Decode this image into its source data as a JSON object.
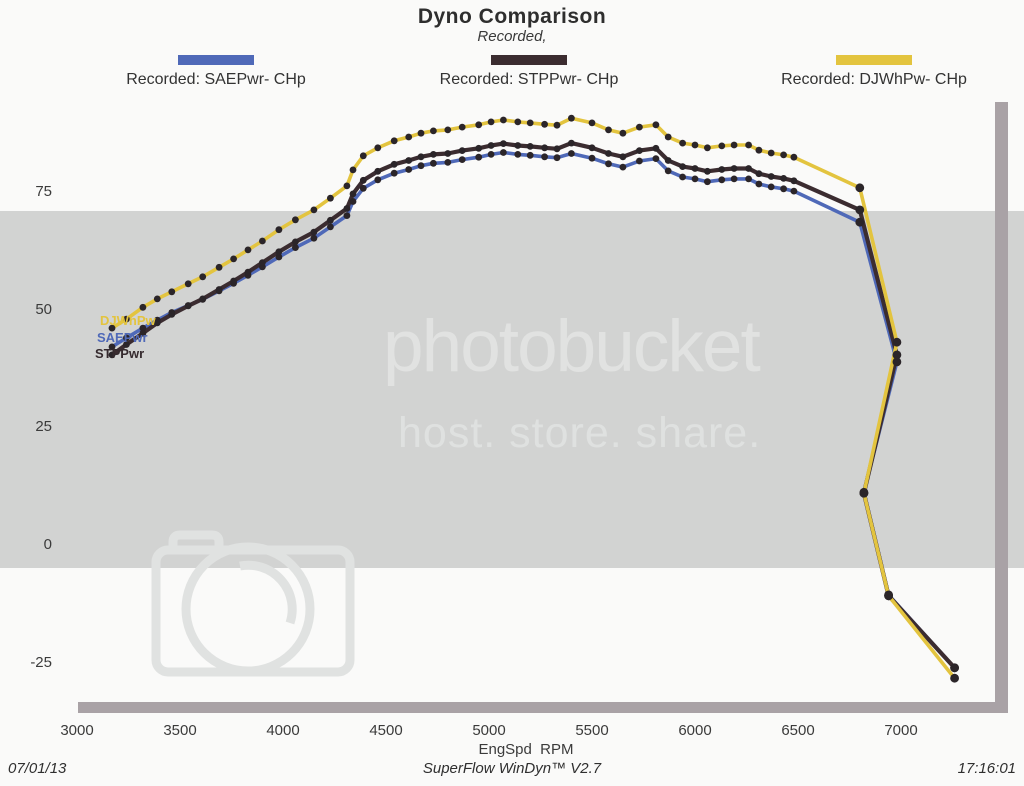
{
  "title": "Dyno Comparison",
  "subtitle": "Recorded,",
  "legend": [
    {
      "label": "Recorded: SAEPwr- CHp",
      "color": "#4f69b8"
    },
    {
      "label": "Recorded: STPPwr- CHp",
      "color": "#3b2c30"
    },
    {
      "label": "Recorded: DJWhPw- CHp",
      "color": "#e3c43f"
    }
  ],
  "curve_labels": [
    {
      "text": "DJWhPw",
      "color": "#e3c43f"
    },
    {
      "text": "SAEPwr",
      "color": "#4f69b8"
    },
    {
      "text": "STPPwr",
      "color": "#352a2e"
    }
  ],
  "watermark": {
    "brand": "photobucket",
    "tagline": "host. store. share.",
    "band_color": "#d2d3d2",
    "glyph_color": "#e0e2e1"
  },
  "footer": {
    "date": "07/01/13",
    "app": "SuperFlow WinDyn™ V2.7",
    "time": "17:16:01"
  },
  "chart_data": {
    "type": "line",
    "title": "Dyno Comparison",
    "subtitle": "Recorded,",
    "xlabel": "EngSpd  RPM",
    "ylabel": "",
    "xlim": [
      3000,
      7520
    ],
    "ylim": [
      -34,
      95
    ],
    "x_ticks": [
      3000,
      3500,
      4000,
      4500,
      5000,
      5500,
      6000,
      6500,
      7000
    ],
    "y_ticks": [
      75,
      50,
      25,
      0,
      -25
    ],
    "grid": false,
    "legend_position": "top",
    "dot_color": "#2b2529",
    "series": [
      {
        "name": "SAEPwr- CHp",
        "color": "#4f69b8",
        "points": [
          [
            3170,
            42.1
          ],
          [
            3240,
            44
          ],
          [
            3320,
            46.1
          ],
          [
            3390,
            47.8
          ],
          [
            3460,
            49.4
          ],
          [
            3540,
            50.9
          ],
          [
            3610,
            52.2
          ],
          [
            3690,
            54
          ],
          [
            3760,
            55.6
          ],
          [
            3830,
            57.3
          ],
          [
            3900,
            59.1
          ],
          [
            3980,
            61.2
          ],
          [
            4060,
            63.2
          ],
          [
            4150,
            65.2
          ],
          [
            4230,
            67.6
          ],
          [
            4310,
            70
          ],
          [
            4340,
            73
          ],
          [
            4390,
            75.8
          ],
          [
            4460,
            77.6
          ],
          [
            4540,
            79
          ],
          [
            4610,
            79.8
          ],
          [
            4670,
            80.6
          ],
          [
            4730,
            81.1
          ],
          [
            4800,
            81.3
          ],
          [
            4870,
            81.9
          ],
          [
            4950,
            82.4
          ],
          [
            5010,
            83
          ],
          [
            5070,
            83.4
          ],
          [
            5140,
            83
          ],
          [
            5200,
            82.8
          ],
          [
            5270,
            82.5
          ],
          [
            5330,
            82.3
          ],
          [
            5400,
            83.2
          ],
          [
            5500,
            82.2
          ],
          [
            5580,
            81
          ],
          [
            5650,
            80.3
          ],
          [
            5730,
            81.6
          ],
          [
            5810,
            82.1
          ],
          [
            5870,
            79.5
          ],
          [
            5940,
            78.2
          ],
          [
            6000,
            77.8
          ],
          [
            6060,
            77.2
          ],
          [
            6130,
            77.6
          ],
          [
            6190,
            77.8
          ],
          [
            6260,
            77.8
          ],
          [
            6310,
            76.7
          ],
          [
            6370,
            76.1
          ],
          [
            6430,
            75.7
          ],
          [
            6480,
            75.2
          ],
          [
            6800,
            68.6
          ],
          [
            6980,
            38.9
          ],
          [
            6820,
            11.2
          ],
          [
            6940,
            -10.6
          ],
          [
            7260,
            -26.1
          ]
        ]
      },
      {
        "name": "STPPwr- CHp",
        "color": "#3b2c30",
        "points": [
          [
            3170,
            40.4
          ],
          [
            3240,
            42.6
          ],
          [
            3320,
            45
          ],
          [
            3390,
            47.2
          ],
          [
            3460,
            49
          ],
          [
            3540,
            50.8
          ],
          [
            3610,
            52.3
          ],
          [
            3690,
            54.3
          ],
          [
            3760,
            56.1
          ],
          [
            3830,
            58
          ],
          [
            3900,
            60
          ],
          [
            3980,
            62.3
          ],
          [
            4060,
            64.4
          ],
          [
            4150,
            66.5
          ],
          [
            4230,
            69
          ],
          [
            4310,
            71.5
          ],
          [
            4340,
            74.6
          ],
          [
            4390,
            77.5
          ],
          [
            4460,
            79.4
          ],
          [
            4540,
            80.9
          ],
          [
            4610,
            81.7
          ],
          [
            4670,
            82.5
          ],
          [
            4730,
            83
          ],
          [
            4800,
            83.2
          ],
          [
            4870,
            83.8
          ],
          [
            4950,
            84.3
          ],
          [
            5010,
            84.9
          ],
          [
            5070,
            85.3
          ],
          [
            5140,
            84.9
          ],
          [
            5200,
            84.7
          ],
          [
            5270,
            84.4
          ],
          [
            5330,
            84.2
          ],
          [
            5400,
            85.4
          ],
          [
            5500,
            84.4
          ],
          [
            5580,
            83.2
          ],
          [
            5650,
            82.5
          ],
          [
            5730,
            83.8
          ],
          [
            5810,
            84.3
          ],
          [
            5870,
            81.7
          ],
          [
            5940,
            80.4
          ],
          [
            6000,
            80
          ],
          [
            6060,
            79.4
          ],
          [
            6130,
            79.8
          ],
          [
            6190,
            80
          ],
          [
            6260,
            80
          ],
          [
            6310,
            78.9
          ],
          [
            6370,
            78.3
          ],
          [
            6430,
            77.9
          ],
          [
            6480,
            77.4
          ],
          [
            6800,
            71.2
          ],
          [
            6980,
            40.4
          ],
          [
            6820,
            11
          ],
          [
            6940,
            -10.8
          ],
          [
            7260,
            -26.1
          ]
        ]
      },
      {
        "name": "DJWhPw- CHp",
        "color": "#e3c43f",
        "points": [
          [
            3170,
            46.1
          ],
          [
            3240,
            48
          ],
          [
            3320,
            50.5
          ],
          [
            3390,
            52.3
          ],
          [
            3460,
            53.8
          ],
          [
            3540,
            55.5
          ],
          [
            3610,
            57
          ],
          [
            3690,
            59
          ],
          [
            3760,
            60.8
          ],
          [
            3830,
            62.7
          ],
          [
            3900,
            64.6
          ],
          [
            3980,
            67
          ],
          [
            4060,
            69.1
          ],
          [
            4150,
            71.2
          ],
          [
            4230,
            73.7
          ],
          [
            4310,
            76.3
          ],
          [
            4340,
            79.7
          ],
          [
            4390,
            82.7
          ],
          [
            4460,
            84.4
          ],
          [
            4540,
            85.9
          ],
          [
            4610,
            86.7
          ],
          [
            4670,
            87.5
          ],
          [
            4730,
            88
          ],
          [
            4800,
            88.2
          ],
          [
            4870,
            88.8
          ],
          [
            4950,
            89.3
          ],
          [
            5010,
            89.9
          ],
          [
            5070,
            90.3
          ],
          [
            5140,
            89.9
          ],
          [
            5200,
            89.7
          ],
          [
            5270,
            89.4
          ],
          [
            5330,
            89.2
          ],
          [
            5400,
            90.7
          ],
          [
            5500,
            89.7
          ],
          [
            5580,
            88.2
          ],
          [
            5650,
            87.5
          ],
          [
            5730,
            88.8
          ],
          [
            5810,
            89.3
          ],
          [
            5870,
            86.7
          ],
          [
            5940,
            85.4
          ],
          [
            6000,
            85
          ],
          [
            6060,
            84.4
          ],
          [
            6130,
            84.8
          ],
          [
            6190,
            85
          ],
          [
            6260,
            85
          ],
          [
            6310,
            83.9
          ],
          [
            6370,
            83.3
          ],
          [
            6430,
            82.9
          ],
          [
            6480,
            82.4
          ],
          [
            6800,
            75.9
          ],
          [
            6980,
            43.1
          ],
          [
            6820,
            11
          ],
          [
            6940,
            -10.8
          ],
          [
            7260,
            -28.3
          ]
        ]
      }
    ]
  }
}
